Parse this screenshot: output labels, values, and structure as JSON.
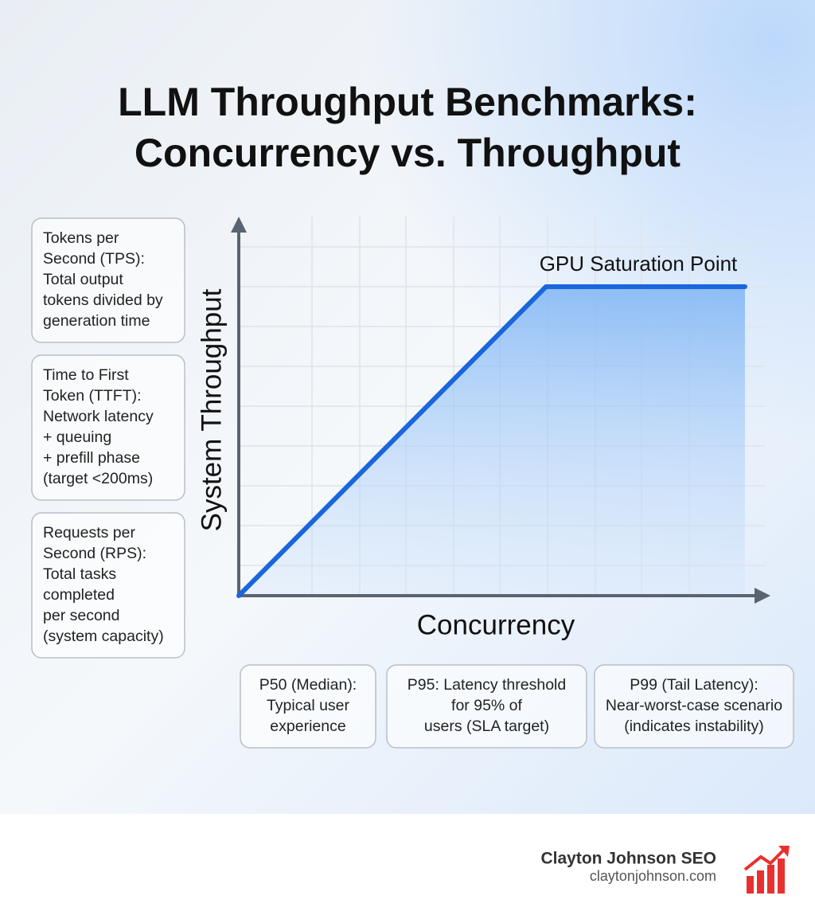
{
  "header": {
    "title": [
      "LLM Throughput Benchmarks:",
      "Concurrency vs. Throughput"
    ]
  },
  "side_boxes": [
    {
      "lines": [
        "Tokens per",
        "Second (TPS):",
        "Total output",
        "tokens divided by",
        "generation time"
      ]
    },
    {
      "lines": [
        "Time to First",
        "Token (TTFT):",
        "Network latency",
        "+ queuing",
        "+ prefill phase",
        "(target <200ms)"
      ]
    },
    {
      "lines": [
        "Requests per",
        "Second (RPS):",
        "Total tasks",
        "completed",
        "per second",
        "(system capacity)"
      ]
    }
  ],
  "chart": {
    "y_label": "System Throughput",
    "x_label": "Concurrency",
    "annotation": "GPU Saturation Point"
  },
  "bottom_boxes": [
    {
      "lines": [
        "P50 (Median):",
        "Typical user",
        "experience"
      ]
    },
    {
      "lines": [
        "P95: Latency threshold",
        "for 95% of",
        "users (SLA target)"
      ]
    },
    {
      "lines": [
        "P99 (Tail Latency):",
        "Near-worst-case scenario",
        "(indicates instability)"
      ]
    }
  ],
  "footer": {
    "brand": "Clayton Johnson SEO",
    "url": "claytonjohnson.com"
  }
}
